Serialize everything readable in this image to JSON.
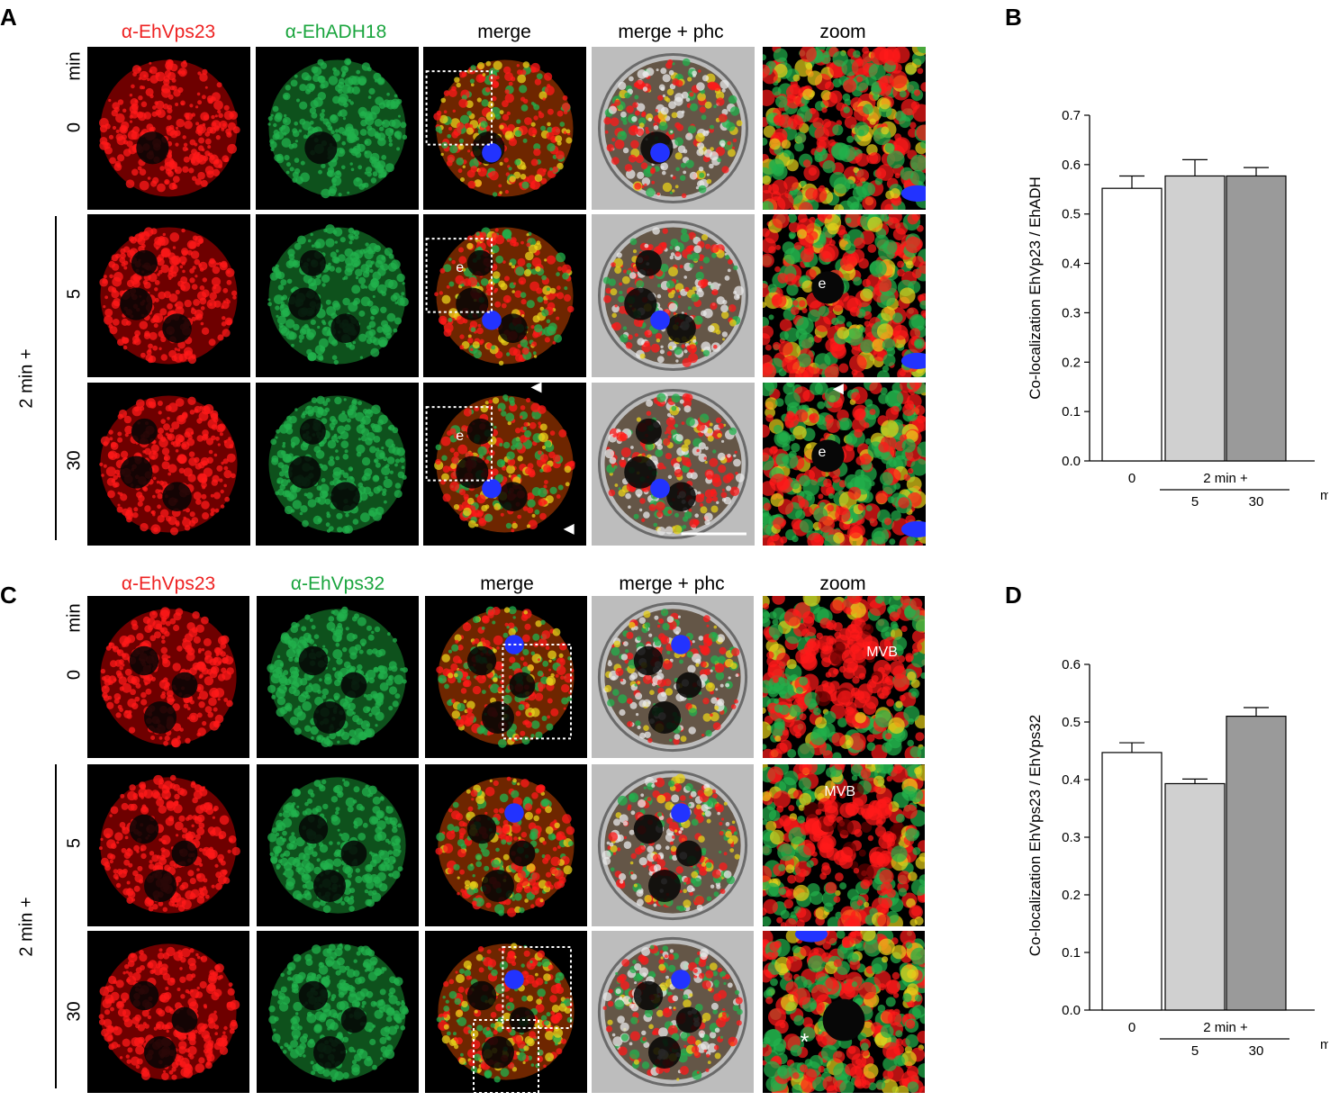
{
  "panels": {
    "a": {
      "letter": "A"
    },
    "b": {
      "letter": "B"
    },
    "c": {
      "letter": "C"
    },
    "d": {
      "letter": "D"
    }
  },
  "colors": {
    "red": "#ff1a1a",
    "green": "#22b14c",
    "nucleus_blue": "#2233ff",
    "bar_white": "#ffffff",
    "bar_light": "#d0d0d0",
    "bar_dark": "#9a9a9a"
  },
  "panel_a": {
    "columns": [
      "α-EhVps23",
      "α-EhADH18",
      "merge",
      "merge + phc",
      "zoom"
    ],
    "time_unit": "min",
    "rows": [
      "0",
      "5",
      "30"
    ],
    "group_label": "2 min +",
    "endosome_label": "e"
  },
  "panel_c": {
    "columns": [
      "α-EhVps23",
      "α-EhVps32",
      "merge",
      "merge + phc",
      "zoom"
    ],
    "time_unit": "min",
    "rows": [
      "0",
      "5",
      "30"
    ],
    "group_label": "2 min +",
    "mvb_label": "MVB",
    "asterisk": "*"
  },
  "chart_data": [
    {
      "type": "bar",
      "panel": "B",
      "ylabel": "Co-localization EhVp23 / EhADH",
      "categories": [
        "0",
        "5",
        "30"
      ],
      "values": [
        0.552,
        0.577,
        0.577
      ],
      "errors": [
        0.025,
        0.033,
        0.017
      ],
      "ylim": [
        0.0,
        0.7
      ],
      "yticks": [
        "0.0",
        "0.1",
        "0.2",
        "0.3",
        "0.4",
        "0.5",
        "0.6",
        "0.7"
      ],
      "group_label": "2 min +",
      "x_unit": "min",
      "bar_colors": [
        "#ffffff",
        "#d0d0d0",
        "#9a9a9a"
      ]
    },
    {
      "type": "bar",
      "panel": "D",
      "ylabel": "Co-localization EhVps23 / EhVps32",
      "categories": [
        "0",
        "5",
        "30"
      ],
      "values": [
        0.447,
        0.393,
        0.51
      ],
      "errors": [
        0.017,
        0.008,
        0.015
      ],
      "ylim": [
        0.0,
        0.6
      ],
      "yticks": [
        "0.0",
        "0.1",
        "0.2",
        "0.3",
        "0.4",
        "0.5",
        "0.6"
      ],
      "group_label": "2 min +",
      "x_unit": "min",
      "bar_colors": [
        "#ffffff",
        "#d0d0d0",
        "#9a9a9a"
      ]
    }
  ]
}
